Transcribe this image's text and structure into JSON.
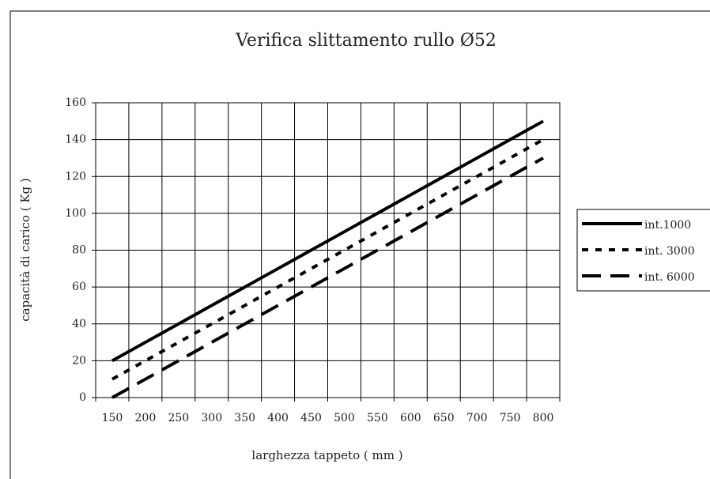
{
  "chart_data": {
    "type": "line",
    "title": "Verifica slittamento rullo Ø52",
    "x_label": "larghezza tappeto ( mm )",
    "y_label": "capacità di carico ( Kg )",
    "categories": [
      "150",
      "200",
      "250",
      "300",
      "350",
      "400",
      "450",
      "500",
      "550",
      "600",
      "650",
      "700",
      "750",
      "800"
    ],
    "series": [
      {
        "name": "int.1000",
        "color": "#000000",
        "dash": "none",
        "values": [
          20,
          30,
          40,
          50,
          60,
          70,
          80,
          90,
          100,
          110,
          120,
          130,
          140,
          150
        ]
      },
      {
        "name": "int. 3000",
        "color": "#000000",
        "dash": "8,9",
        "values": [
          10,
          20,
          30,
          40,
          50,
          60,
          70,
          80,
          90,
          100,
          110,
          120,
          130,
          140
        ]
      },
      {
        "name": "int. 6000",
        "color": "#000000",
        "dash": "24,12",
        "values": [
          0,
          10,
          20,
          30,
          40,
          50,
          60,
          70,
          80,
          90,
          100,
          110,
          120,
          130
        ]
      }
    ],
    "ylim": [
      0,
      160
    ],
    "yticks": [
      0,
      20,
      40,
      60,
      80,
      100,
      120,
      140,
      160
    ],
    "grid": true,
    "legend": "right"
  }
}
